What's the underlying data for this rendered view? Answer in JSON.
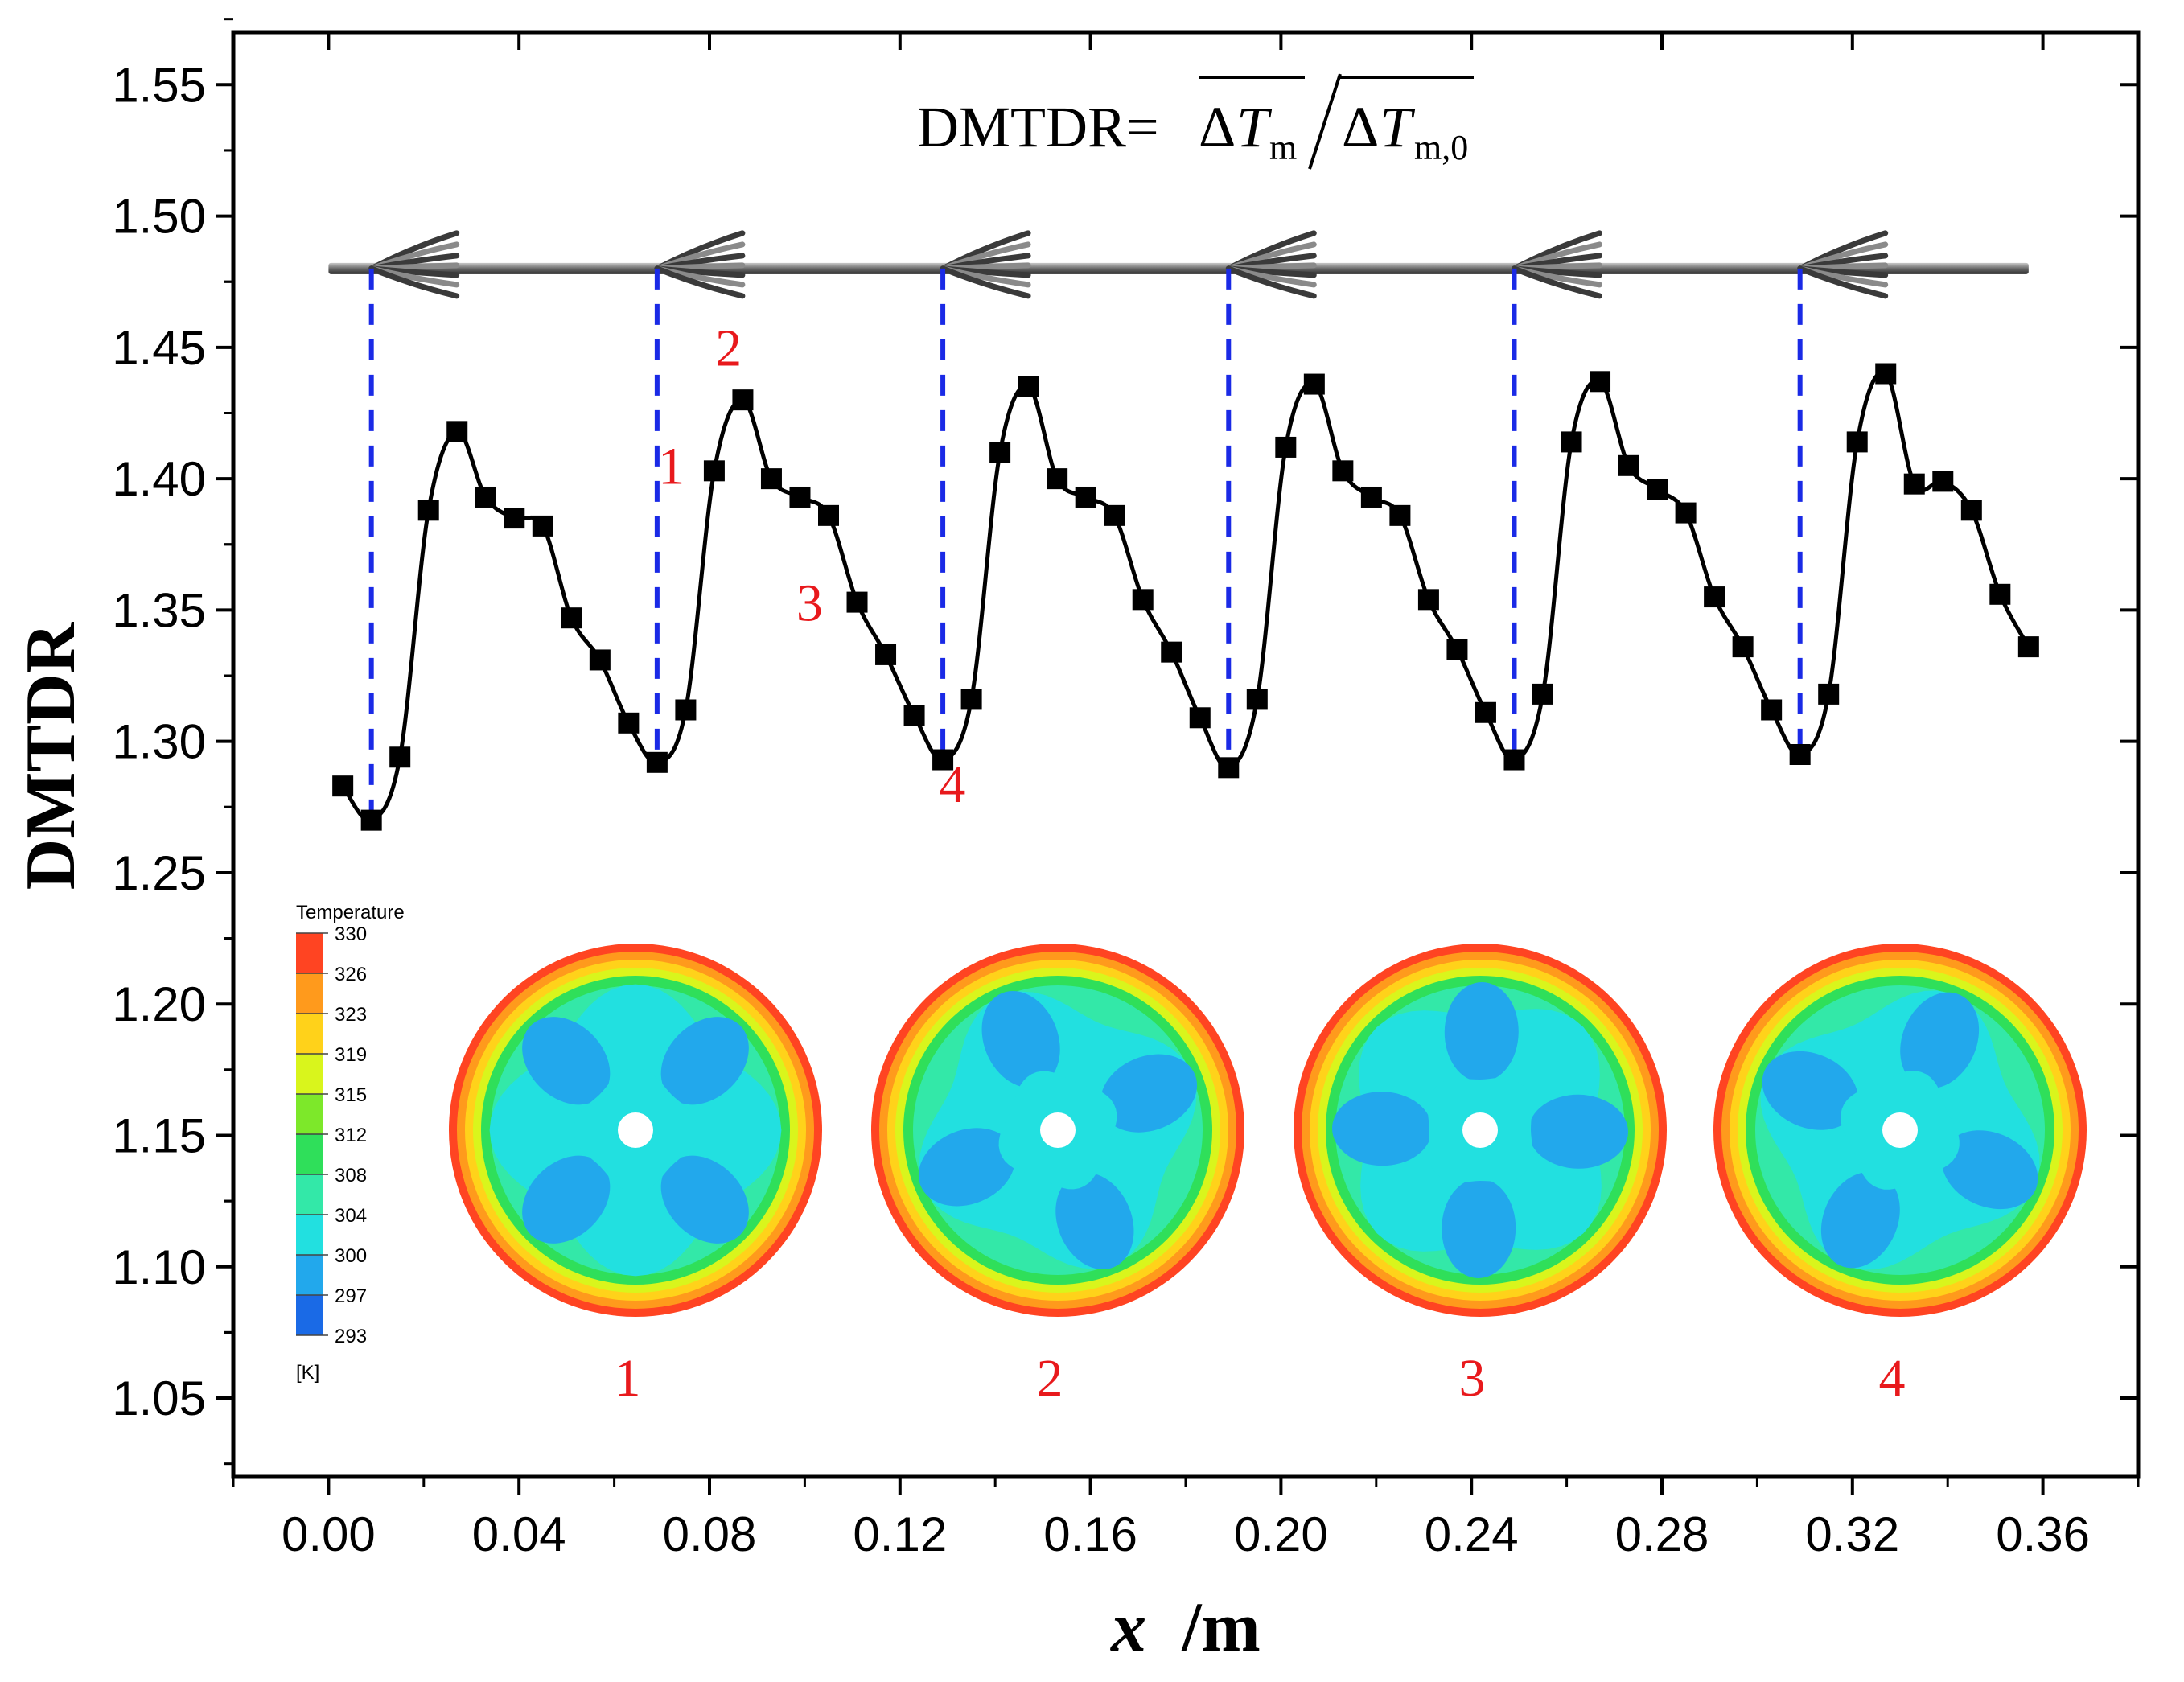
{
  "chart_data": {
    "type": "line",
    "xlabel_var": "x",
    "xlabel_unit": "/m",
    "ylabel": "DMTDR",
    "xlim": [
      -0.02,
      0.38
    ],
    "ylim": [
      1.02,
      1.57
    ],
    "x_ticks": [
      "0.00",
      "0.04",
      "0.08",
      "0.12",
      "0.16",
      "0.20",
      "0.24",
      "0.28",
      "0.32",
      "0.36"
    ],
    "y_ticks": [
      "1.05",
      "1.10",
      "1.15",
      "1.20",
      "1.25",
      "1.30",
      "1.35",
      "1.40",
      "1.45",
      "1.50",
      "1.55"
    ],
    "grid": false,
    "series": [
      {
        "marker": "square",
        "color": "#000000",
        "points": [
          [
            0.003,
            1.283
          ],
          [
            0.009,
            1.27
          ],
          [
            0.015,
            1.294
          ],
          [
            0.021,
            1.388
          ],
          [
            0.027,
            1.418
          ],
          [
            0.033,
            1.393
          ],
          [
            0.039,
            1.385
          ],
          [
            0.045,
            1.382
          ],
          [
            0.051,
            1.347
          ],
          [
            0.057,
            1.331
          ],
          [
            0.063,
            1.307
          ],
          [
            0.069,
            1.292
          ],
          [
            0.075,
            1.312
          ],
          [
            0.081,
            1.403
          ],
          [
            0.087,
            1.43
          ],
          [
            0.093,
            1.4
          ],
          [
            0.099,
            1.393
          ],
          [
            0.105,
            1.386
          ],
          [
            0.111,
            1.353
          ],
          [
            0.117,
            1.333
          ],
          [
            0.123,
            1.31
          ],
          [
            0.129,
            1.293
          ],
          [
            0.135,
            1.316
          ],
          [
            0.141,
            1.41
          ],
          [
            0.147,
            1.435
          ],
          [
            0.153,
            1.4
          ],
          [
            0.159,
            1.393
          ],
          [
            0.165,
            1.386
          ],
          [
            0.171,
            1.354
          ],
          [
            0.177,
            1.334
          ],
          [
            0.183,
            1.309
          ],
          [
            0.189,
            1.29
          ],
          [
            0.195,
            1.316
          ],
          [
            0.201,
            1.412
          ],
          [
            0.207,
            1.436
          ],
          [
            0.213,
            1.403
          ],
          [
            0.219,
            1.393
          ],
          [
            0.225,
            1.386
          ],
          [
            0.231,
            1.354
          ],
          [
            0.237,
            1.335
          ],
          [
            0.243,
            1.311
          ],
          [
            0.249,
            1.293
          ],
          [
            0.255,
            1.318
          ],
          [
            0.261,
            1.414
          ],
          [
            0.267,
            1.437
          ],
          [
            0.273,
            1.405
          ],
          [
            0.279,
            1.396
          ],
          [
            0.285,
            1.387
          ],
          [
            0.291,
            1.355
          ],
          [
            0.297,
            1.336
          ],
          [
            0.303,
            1.312
          ],
          [
            0.309,
            1.295
          ],
          [
            0.315,
            1.318
          ],
          [
            0.321,
            1.414
          ],
          [
            0.327,
            1.44
          ],
          [
            0.333,
            1.398
          ],
          [
            0.339,
            1.399
          ],
          [
            0.345,
            1.388
          ],
          [
            0.351,
            1.356
          ],
          [
            0.357,
            1.336
          ]
        ]
      }
    ],
    "dashed_markers_x": [
      0.009,
      0.069,
      0.129,
      0.189,
      0.249,
      0.309
    ],
    "dashed_color": "#1a2ae6",
    "tube_y": 1.48,
    "annotations": [
      {
        "text": "2",
        "x": 0.084,
        "y": 1.443
      },
      {
        "text": "1",
        "x": 0.072,
        "y": 1.398
      },
      {
        "text": "3",
        "x": 0.101,
        "y": 1.346
      },
      {
        "text": "4",
        "x": 0.131,
        "y": 1.277
      }
    ],
    "formula": {
      "lhs": "DMTDR=",
      "num_delta": "Δ",
      "num_var": "T",
      "num_sub": "m",
      "den_delta": "Δ",
      "den_var": "T",
      "den_sub": "m,0"
    }
  },
  "contour_legend": {
    "title": "Temperature",
    "unit": "[K]",
    "levels": [
      "330",
      "326",
      "323",
      "319",
      "315",
      "312",
      "308",
      "304",
      "300",
      "297",
      "293"
    ],
    "colors": [
      "#ff4422",
      "#ff9a1c",
      "#ffd21a",
      "#d9f51c",
      "#7de82a",
      "#2fdf5a",
      "#33e8a8",
      "#22e0e0",
      "#22a8ec",
      "#1a6ae6",
      "#1a28e0"
    ]
  },
  "contour_plots": [
    {
      "label": "1"
    },
    {
      "label": "2"
    },
    {
      "label": "3"
    },
    {
      "label": "4"
    }
  ]
}
